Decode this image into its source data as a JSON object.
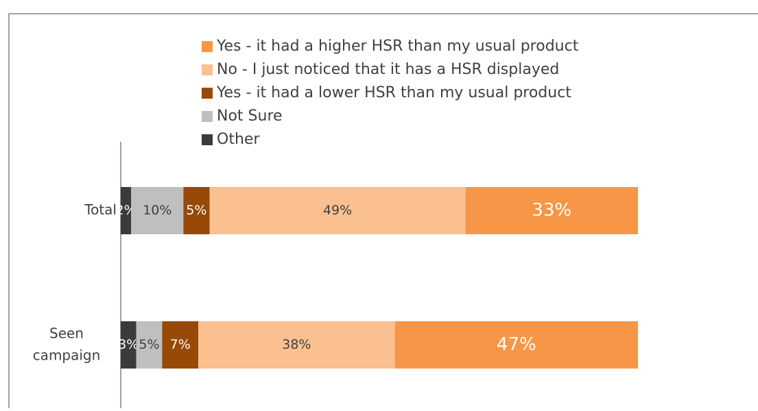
{
  "chart_data": {
    "type": "bar",
    "orientation": "horizontal",
    "stacking": "percent",
    "categories": [
      "Total",
      "Seen campaign"
    ],
    "series": [
      {
        "name": "Other",
        "color": "#3b3b3b",
        "label_color": "#ffffff",
        "values": [
          2,
          3
        ],
        "value_labels": [
          "2%",
          "3%"
        ]
      },
      {
        "name": "Not Sure",
        "color": "#bfbfbf",
        "label_color": "#404040",
        "values": [
          10,
          5
        ],
        "value_labels": [
          "10%",
          "5%"
        ]
      },
      {
        "name": "Yes - it had a lower HSR than my usual product",
        "color": "#984807",
        "label_color": "#ffffff",
        "values": [
          5,
          7
        ],
        "value_labels": [
          "5%",
          "7%"
        ]
      },
      {
        "name": "No - I just noticed that it has a HSR displayed",
        "color": "#fac090",
        "label_color": "#404040",
        "values": [
          49,
          38
        ],
        "value_labels": [
          "49%",
          "38%"
        ]
      },
      {
        "name": "Yes - it had a higher HSR than my usual product",
        "color": "#f79646",
        "label_color": "#ffffff",
        "values": [
          33,
          47
        ],
        "value_labels": [
          "33%",
          "47%"
        ]
      }
    ],
    "legend": "top"
  }
}
